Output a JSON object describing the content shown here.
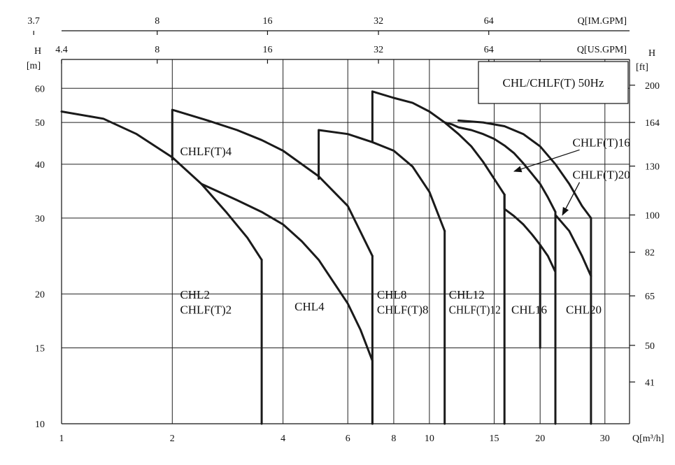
{
  "chart_data": {
    "type": "line",
    "title": "CHL/CHLF(T) 50Hz",
    "x_scale": "log",
    "y_scale": "log",
    "xlim": [
      1,
      35
    ],
    "ylim": [
      10,
      70
    ],
    "xlabel": "Q[m³/h]",
    "x_ticks": [
      "1",
      "2",
      "4",
      "6",
      "8",
      "10",
      "15",
      "20",
      "30"
    ],
    "x_gridlines": [
      2,
      4,
      6,
      8,
      10,
      15,
      20,
      30
    ],
    "top_axes": [
      {
        "label": "Q[IM.GPM]",
        "ticks": [
          "3.7",
          "8",
          "16",
          "32",
          "64"
        ],
        "values": [
          0.84,
          1.82,
          3.63,
          7.27,
          14.5
        ]
      },
      {
        "label": "Q[US.GPM]",
        "ticks": [
          "4.4",
          "8",
          "16",
          "32",
          "64"
        ],
        "values": [
          1.0,
          1.82,
          3.63,
          7.27,
          14.5
        ]
      }
    ],
    "left_axis": {
      "label_top": "H",
      "label": "[m]",
      "ticks": [
        "60",
        "50",
        "40",
        "30",
        "20",
        "15",
        "10"
      ],
      "values": [
        60,
        50,
        40,
        30,
        20,
        15,
        10
      ]
    },
    "right_axis": {
      "label_top": "H",
      "label": "[ft]",
      "ticks": [
        "200",
        "164",
        "130",
        "100",
        "82",
        "65",
        "50",
        "41"
      ],
      "values": [
        61,
        50,
        39.6,
        30.5,
        25,
        19.8,
        15.2,
        12.5
      ]
    },
    "grid": true,
    "series": [
      {
        "x": [
          1,
          1.3,
          1.6,
          2,
          2.4,
          2.8,
          3.2,
          3.5
        ],
        "y": [
          53,
          51,
          47,
          41.5,
          36,
          31,
          27,
          24
        ]
      },
      {
        "x": [
          3.5,
          3.5
        ],
        "y": [
          24,
          10
        ]
      },
      {
        "x": [
          2,
          2,
          2.5,
          3,
          3.5,
          4,
          5,
          6,
          7
        ],
        "y": [
          41,
          53.5,
          50.5,
          48,
          45.5,
          43,
          37.5,
          32,
          24.5
        ]
      },
      {
        "x": [
          7,
          7
        ],
        "y": [
          24.5,
          10
        ]
      },
      {
        "x": [
          2.4,
          3,
          3.5,
          4,
          4.5,
          5,
          6,
          6.5,
          7
        ],
        "y": [
          36,
          33,
          31,
          29,
          26.5,
          24,
          19,
          16.5,
          14
        ]
      },
      {
        "x": [
          7,
          7
        ],
        "y": [
          14,
          10
        ]
      },
      {
        "x": [
          5,
          5,
          6,
          7,
          8,
          9,
          10,
          11
        ],
        "y": [
          37,
          48,
          47,
          45,
          43,
          39.5,
          34.5,
          28
        ]
      },
      {
        "x": [
          11,
          11
        ],
        "y": [
          28,
          10
        ]
      },
      {
        "x": [
          7,
          7,
          8,
          9,
          10,
          11,
          12,
          13,
          14,
          15,
          16
        ],
        "y": [
          45,
          59,
          57,
          55.5,
          53,
          50,
          47,
          44,
          40.5,
          37,
          34
        ]
      },
      {
        "x": [
          16,
          16
        ],
        "y": [
          34,
          10
        ]
      },
      {
        "x": [
          11,
          11.5,
          12,
          13,
          14,
          15,
          16,
          17,
          18,
          19,
          20,
          21,
          22
        ],
        "y": [
          50,
          49.5,
          48.7,
          48,
          47,
          45.8,
          44.2,
          42.4,
          40.2,
          38,
          36,
          33.5,
          31
        ]
      },
      {
        "x": [
          22,
          22
        ],
        "y": [
          31,
          10
        ]
      },
      {
        "x": [
          16,
          16,
          17,
          18,
          19,
          20,
          21,
          22
        ],
        "y": [
          34,
          31.5,
          30.3,
          29,
          27.5,
          26,
          24.5,
          22.5
        ]
      },
      {
        "x": [
          20,
          20
        ],
        "y": [
          26,
          15
        ]
      },
      {
        "x": [
          12,
          14,
          16,
          18,
          20,
          22,
          24,
          26,
          27.5
        ],
        "y": [
          50.5,
          50,
          49,
          47,
          44,
          40,
          36,
          32,
          30
        ]
      },
      {
        "x": [
          27.5,
          27.5
        ],
        "y": [
          30,
          10
        ]
      },
      {
        "x": [
          22,
          22,
          24,
          26,
          27.5
        ],
        "y": [
          10.5,
          30.5,
          28,
          24.5,
          22
        ]
      }
    ],
    "annotations": [
      {
        "text": "CHLF(T)4",
        "x": 2.1,
        "y": 42
      },
      {
        "text": "CHL2",
        "x": 2.1,
        "y": 19.5
      },
      {
        "text": "CHLF(T)2",
        "x": 2.1,
        "y": 18
      },
      {
        "text": "CHL4",
        "x": 4.3,
        "y": 18.3
      },
      {
        "text": "CHL8",
        "x": 7.2,
        "y": 19.5
      },
      {
        "text": "CHLF(T)8",
        "x": 7.2,
        "y": 18
      },
      {
        "text": "CHL12",
        "x": 11.3,
        "y": 19.5
      },
      {
        "text": "CHLF(T)12",
        "x": 11.3,
        "y": 18
      },
      {
        "text": "CHL16",
        "x": 16.7,
        "y": 18
      },
      {
        "text": "CHL20",
        "x": 23.5,
        "y": 18
      },
      {
        "text": "CHLF(T)16",
        "x": 24.5,
        "y": 44,
        "arrow_to": [
          17,
          38.5
        ]
      },
      {
        "text": "CHLF(T)20",
        "x": 24.5,
        "y": 37,
        "arrow_to": [
          23,
          30.5
        ]
      }
    ]
  }
}
